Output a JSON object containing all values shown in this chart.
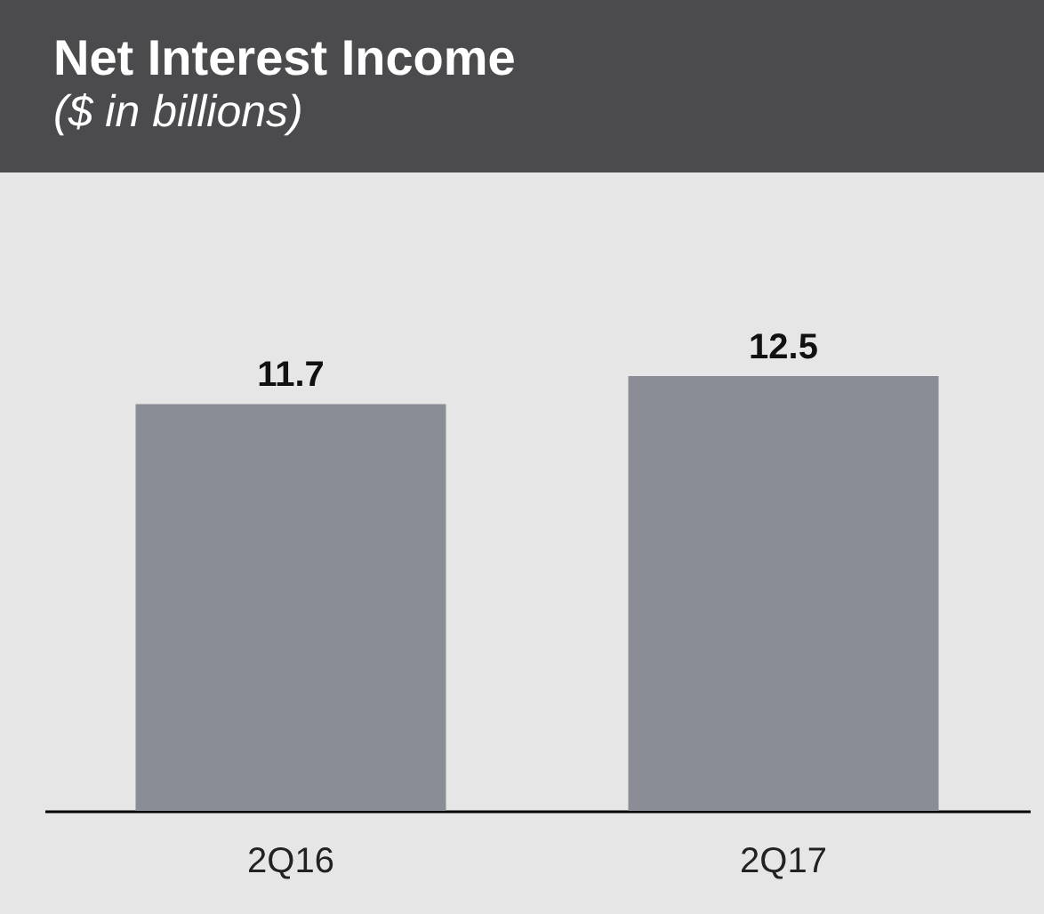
{
  "chart_data": {
    "type": "bar",
    "title": "Net Interest Income",
    "subtitle": "($ in billions)",
    "categories": [
      "2Q16",
      "2Q17"
    ],
    "values": [
      11.7,
      12.5
    ],
    "color": "#8a8d95",
    "data_labels": true,
    "grid": false
  }
}
